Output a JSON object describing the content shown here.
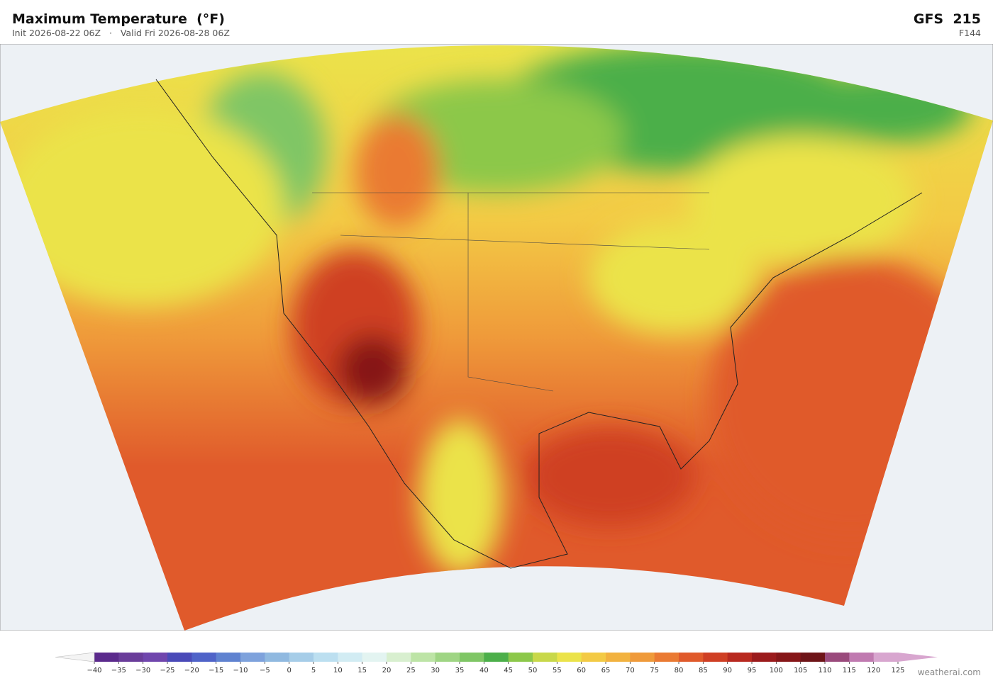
{
  "header": {
    "title": "Maximum Temperature  (°F)",
    "subtitle": "Init 2026-08-22 06Z   ·   Valid Fri 2026-08-28 06Z",
    "model": "GFS  215",
    "forecast_hour": "F144"
  },
  "colorbar": {
    "ticks": [
      {
        "value": -40,
        "label": "−40"
      },
      {
        "value": -35,
        "label": "−35"
      },
      {
        "value": -30,
        "label": "−30"
      },
      {
        "value": -25,
        "label": "−25"
      },
      {
        "value": -20,
        "label": "−20"
      },
      {
        "value": -15,
        "label": "−15"
      },
      {
        "value": -10,
        "label": "−10"
      },
      {
        "value": -5,
        "label": "−5"
      },
      0,
      5,
      10,
      15,
      20,
      25,
      30,
      35,
      40,
      45,
      50,
      55,
      60,
      65,
      70,
      75,
      80,
      85,
      90,
      95,
      100,
      105,
      110,
      115,
      120,
      125
    ],
    "colors": [
      "#5b2a8c",
      "#6a3d9a",
      "#7046ad",
      "#4a4ab8",
      "#4f63c8",
      "#5f82d0",
      "#7ea2dc",
      "#90b9e0",
      "#a6cde8",
      "#bcdff0",
      "#d2ecf3",
      "#e3f4f1",
      "#d8efcf",
      "#bde4a6",
      "#9fd584",
      "#7fc665",
      "#4caf4a",
      "#8cc84a",
      "#c8d84a",
      "#ebe34a",
      "#f3ca45",
      "#f2b23f",
      "#ef9a3a",
      "#ea7a33",
      "#e05a2b",
      "#cf3f24",
      "#b8291f",
      "#9b1b1c",
      "#861618",
      "#6e1418",
      "#9a4a7c",
      "#c07ab0",
      "#d8a6cf"
    ],
    "under_color": "#f4f4f4",
    "over_color": "#d8a6cf"
  },
  "footer": {
    "credit": "weatherai.com"
  }
}
